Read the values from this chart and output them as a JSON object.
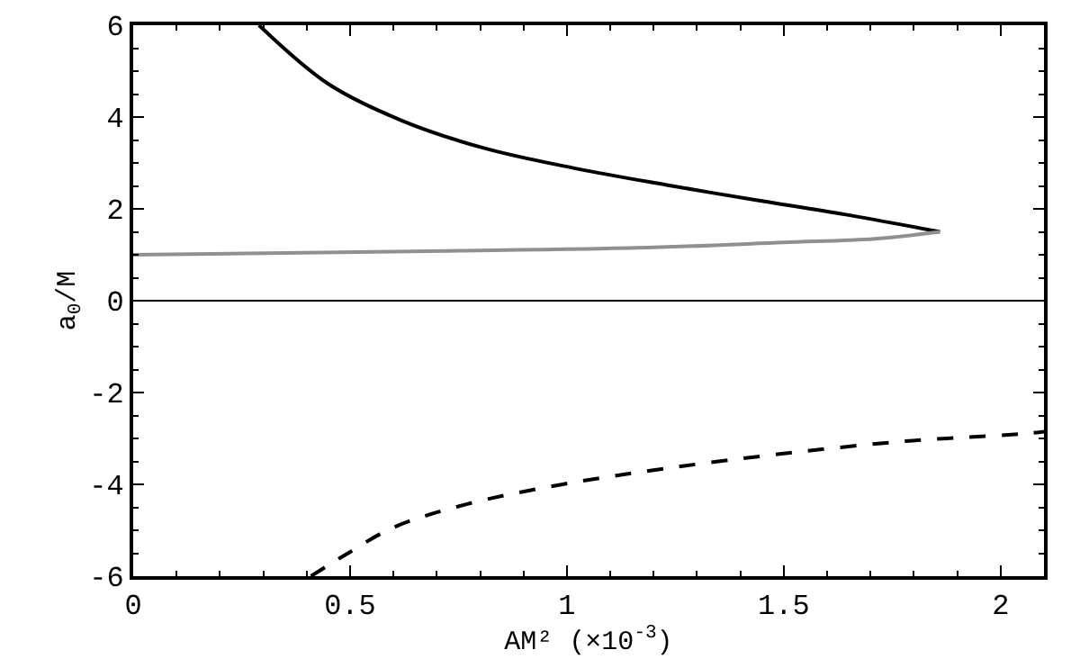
{
  "chart_data": {
    "type": "line",
    "xlabel": "AM² (×10$^{-3}$)",
    "ylabel": "a$_{0}$/M",
    "xlim": [
      0,
      2.1
    ],
    "ylim": [
      -6,
      6
    ],
    "xticks": [
      0,
      0.5,
      1,
      1.5,
      2
    ],
    "yticks": [
      -6,
      -4,
      -2,
      0,
      2,
      4,
      6
    ],
    "series": [
      {
        "color": "#000000",
        "line_style": "solid",
        "x": [
          0.29,
          0.45,
          0.62,
          0.81,
          1.02,
          1.23,
          1.43,
          1.64,
          1.86
        ],
        "values": [
          6,
          4.72,
          3.92,
          3.32,
          2.88,
          2.52,
          2.2,
          1.88,
          1.5
        ]
      },
      {
        "color": "#909090",
        "line_style": "solid",
        "x": [
          0,
          0.6,
          1.16,
          1.5,
          1.71,
          1.86
        ],
        "values": [
          1,
          1.07,
          1.15,
          1.27,
          1.35,
          1.5
        ]
      },
      {
        "color": "#000000",
        "line_style": "dashed",
        "x": [
          0.41,
          0.49,
          0.6,
          0.77,
          0.99,
          1.23,
          1.5,
          1.78,
          2.05,
          2.1
        ],
        "values": [
          -6,
          -5.53,
          -4.94,
          -4.43,
          -4.0,
          -3.65,
          -3.33,
          -3.06,
          -2.9,
          -2.85
        ]
      }
    ],
    "ref_lines": [
      {
        "axis": "y",
        "value": 0,
        "color": "#000000"
      }
    ]
  }
}
